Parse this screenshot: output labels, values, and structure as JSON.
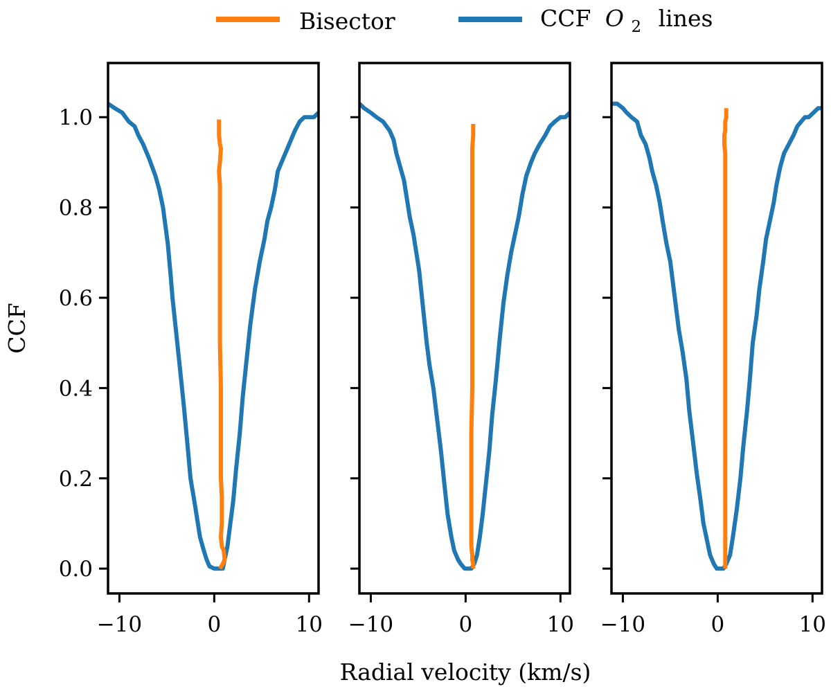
{
  "chart_data": {
    "type": "line",
    "layout": "three panels side by side, shared y axis",
    "ylabel": "CCF",
    "xlabel": "Radial velocity (km/s)",
    "xlim": [
      -11.2,
      11.0
    ],
    "ylim": [
      -0.055,
      1.12
    ],
    "xticks": [
      -10,
      0,
      10
    ],
    "yticks": [
      0.0,
      0.2,
      0.4,
      0.6,
      0.8,
      1.0
    ],
    "xtick_labels": [
      "−10",
      "0",
      "10"
    ],
    "ytick_labels": [
      "0.0",
      "0.2",
      "0.4",
      "0.6",
      "0.8",
      "1.0"
    ],
    "legend": {
      "placement": "top-center, outside plot",
      "entries": [
        {
          "label": "Bisector",
          "label_main": "Bisector",
          "color": "#ff7f0e"
        },
        {
          "label": "CCF O2 lines",
          "label_main": "CCF",
          "label_var": "O",
          "label_sub": "2",
          "label_tail": "lines",
          "color": "#1f77b4"
        }
      ]
    },
    "colors": {
      "ccf": "#1f77b4",
      "bisector": "#ff7f0e"
    },
    "panels": [
      {
        "name": "panel 1",
        "ylabels_visible": true,
        "series": [
          {
            "name": "CCF O2 lines",
            "x": [
              -11.2,
              -10.5,
              -9.7,
              -9.0,
              -8.4,
              -8.0,
              -7.5,
              -6.9,
              -6.2,
              -5.8,
              -5.4,
              -4.9,
              -4.6,
              -4.4,
              -4.0,
              -3.6,
              -3.2,
              -2.8,
              -2.5,
              -2.1,
              -1.8,
              -1.5,
              -1.1,
              -0.8,
              -0.5,
              0.0,
              0.3,
              0.6,
              0.9,
              1.1,
              1.4,
              1.7,
              2.0,
              2.3,
              2.7,
              3.0,
              3.4,
              3.8,
              4.3,
              4.8,
              5.3,
              5.6,
              6.0,
              6.4,
              6.7,
              7.3,
              7.7,
              8.1,
              8.5,
              9.0,
              9.5,
              10.0,
              10.5,
              11.0
            ],
            "y": [
              1.03,
              1.02,
              1.01,
              0.99,
              0.98,
              0.96,
              0.94,
              0.91,
              0.87,
              0.84,
              0.8,
              0.72,
              0.65,
              0.6,
              0.52,
              0.44,
              0.36,
              0.27,
              0.2,
              0.15,
              0.11,
              0.07,
              0.04,
              0.02,
              0.005,
              0.0,
              0.0,
              0.0,
              0.0,
              0.02,
              0.05,
              0.1,
              0.15,
              0.22,
              0.3,
              0.38,
              0.46,
              0.54,
              0.62,
              0.68,
              0.73,
              0.77,
              0.8,
              0.84,
              0.88,
              0.91,
              0.93,
              0.95,
              0.97,
              0.99,
              1.0,
              1.0,
              1.0,
              1.01
            ]
          },
          {
            "name": "Bisector",
            "x": [
              0.5,
              0.5,
              0.6,
              0.7,
              0.6,
              0.5,
              0.6,
              0.6,
              0.6,
              0.6,
              0.6,
              0.7,
              0.7,
              0.7,
              0.8,
              0.8,
              0.8,
              0.7,
              0.8,
              1.0,
              1.1,
              0.9,
              0.6
            ],
            "y": [
              0.995,
              0.96,
              0.94,
              0.93,
              0.9,
              0.88,
              0.85,
              0.8,
              0.7,
              0.6,
              0.5,
              0.4,
              0.3,
              0.2,
              0.16,
              0.13,
              0.1,
              0.07,
              0.05,
              0.04,
              0.02,
              0.01,
              0.0
            ]
          }
        ]
      },
      {
        "name": "panel 2",
        "ylabels_visible": false,
        "series": [
          {
            "name": "CCF O2 lines",
            "x": [
              -11.2,
              -10.7,
              -10.0,
              -9.4,
              -8.7,
              -8.0,
              -7.6,
              -7.3,
              -6.9,
              -6.5,
              -6.2,
              -5.9,
              -5.5,
              -5.2,
              -4.9,
              -4.7,
              -4.4,
              -4.1,
              -3.8,
              -3.4,
              -3.0,
              -2.6,
              -2.2,
              -1.9,
              -1.5,
              -1.2,
              -0.8,
              -0.5,
              -0.1,
              0.3,
              0.6,
              0.9,
              1.2,
              1.5,
              1.8,
              2.1,
              2.5,
              2.8,
              3.2,
              3.6,
              4.0,
              4.4,
              4.8,
              5.2,
              5.6,
              6.0,
              6.4,
              6.9,
              7.3,
              7.8,
              8.4,
              8.9,
              9.4,
              10.0,
              10.5,
              11.0
            ],
            "y": [
              1.03,
              1.02,
              1.01,
              1.0,
              0.99,
              0.97,
              0.95,
              0.92,
              0.89,
              0.86,
              0.82,
              0.78,
              0.74,
              0.7,
              0.66,
              0.62,
              0.56,
              0.5,
              0.45,
              0.4,
              0.33,
              0.26,
              0.18,
              0.12,
              0.07,
              0.04,
              0.02,
              0.01,
              0.0,
              0.0,
              0.0,
              0.01,
              0.03,
              0.07,
              0.12,
              0.18,
              0.26,
              0.34,
              0.42,
              0.51,
              0.59,
              0.65,
              0.7,
              0.74,
              0.78,
              0.83,
              0.87,
              0.9,
              0.92,
              0.94,
              0.96,
              0.98,
              0.99,
              1.0,
              1.0,
              1.01
            ]
          },
          {
            "name": "Bisector",
            "x": [
              0.8,
              0.8,
              0.7,
              0.7,
              0.7,
              0.7,
              0.7,
              0.7,
              0.7,
              0.7,
              0.6,
              0.6,
              0.6,
              0.6,
              0.6,
              0.7,
              0.7,
              0.8,
              0.8
            ],
            "y": [
              0.985,
              0.96,
              0.93,
              0.9,
              0.86,
              0.8,
              0.7,
              0.6,
              0.5,
              0.4,
              0.3,
              0.2,
              0.15,
              0.1,
              0.05,
              0.03,
              0.02,
              0.01,
              0.0
            ]
          }
        ]
      },
      {
        "name": "panel 3",
        "ylabels_visible": false,
        "series": [
          {
            "name": "CCF O2 lines",
            "x": [
              -11.2,
              -10.6,
              -10.0,
              -9.6,
              -9.1,
              -8.5,
              -8.1,
              -7.6,
              -7.2,
              -6.9,
              -6.5,
              -6.1,
              -5.8,
              -5.4,
              -5.0,
              -4.7,
              -4.4,
              -4.1,
              -3.7,
              -3.3,
              -3.0,
              -2.6,
              -2.2,
              -1.8,
              -1.5,
              -1.1,
              -0.8,
              -0.4,
              -0.1,
              0.2,
              0.6,
              0.9,
              1.3,
              1.6,
              2.0,
              2.4,
              2.7,
              3.1,
              3.4,
              3.7,
              4.1,
              4.4,
              4.8,
              5.1,
              5.5,
              5.9,
              6.2,
              6.6,
              7.0,
              7.5,
              8.0,
              8.4,
              8.8,
              9.2,
              9.6,
              10.1,
              10.6,
              11.0
            ],
            "y": [
              1.03,
              1.03,
              1.02,
              1.01,
              1.0,
              0.99,
              0.96,
              0.94,
              0.91,
              0.88,
              0.85,
              0.81,
              0.77,
              0.72,
              0.68,
              0.63,
              0.58,
              0.53,
              0.48,
              0.42,
              0.35,
              0.28,
              0.21,
              0.15,
              0.1,
              0.06,
              0.03,
              0.01,
              0.0,
              0.0,
              0.0,
              0.01,
              0.03,
              0.07,
              0.13,
              0.2,
              0.27,
              0.35,
              0.42,
              0.5,
              0.56,
              0.62,
              0.68,
              0.73,
              0.77,
              0.81,
              0.85,
              0.89,
              0.92,
              0.94,
              0.96,
              0.98,
              0.99,
              1.0,
              1.0,
              1.01,
              1.02,
              1.02
            ]
          },
          {
            "name": "Bisector",
            "x": [
              0.9,
              0.9,
              0.8,
              0.8,
              0.7,
              0.7,
              0.8,
              0.8,
              0.8,
              0.8,
              0.8,
              0.8,
              0.8,
              0.8,
              0.8,
              0.8,
              0.8,
              0.8,
              0.8,
              0.8,
              0.8,
              0.8
            ],
            "y": [
              1.02,
              1.0,
              0.99,
              0.97,
              0.96,
              0.94,
              0.92,
              0.9,
              0.85,
              0.8,
              0.7,
              0.6,
              0.5,
              0.4,
              0.3,
              0.2,
              0.15,
              0.1,
              0.05,
              0.03,
              0.01,
              0.0
            ]
          }
        ]
      }
    ]
  }
}
